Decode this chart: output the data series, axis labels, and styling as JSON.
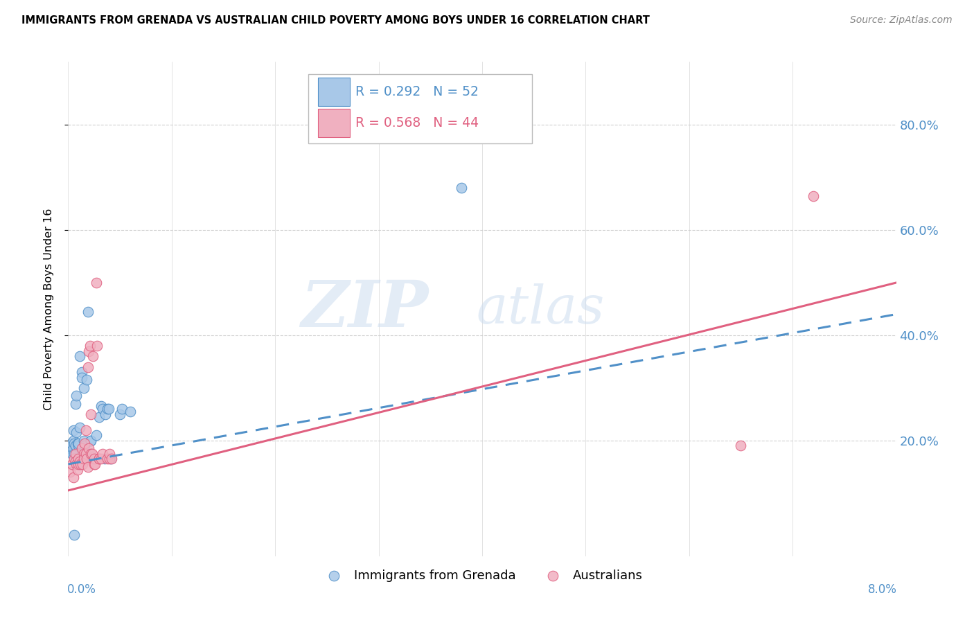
{
  "title": "IMMIGRANTS FROM GRENADA VS AUSTRALIAN CHILD POVERTY AMONG BOYS UNDER 16 CORRELATION CHART",
  "source": "Source: ZipAtlas.com",
  "ylabel": "Child Poverty Among Boys Under 16",
  "legend_label1": "Immigrants from Grenada",
  "legend_label2": "Australians",
  "R1": "R = 0.292",
  "N1": "N = 52",
  "R2": "R = 0.568",
  "N2": "N = 44",
  "color_blue": "#a8c8e8",
  "color_pink": "#f0b0c0",
  "line_color_blue": "#5090c8",
  "line_color_pink": "#e06080",
  "watermark_zip": "ZIP",
  "watermark_atlas": "atlas",
  "xlim": [
    0.0,
    0.08
  ],
  "ylim": [
    -0.02,
    0.92
  ],
  "plot_ylim": [
    0.0,
    0.88
  ],
  "blue_line": [
    0.0,
    0.155,
    0.08,
    0.44
  ],
  "pink_line": [
    0.0,
    0.105,
    0.08,
    0.5
  ],
  "blue_points": [
    [
      0.0002,
      0.185
    ],
    [
      0.0003,
      0.195
    ],
    [
      0.0004,
      0.175
    ],
    [
      0.0005,
      0.2
    ],
    [
      0.0005,
      0.22
    ],
    [
      0.0005,
      0.185
    ],
    [
      0.0006,
      0.175
    ],
    [
      0.0006,
      0.195
    ],
    [
      0.0007,
      0.27
    ],
    [
      0.0007,
      0.19
    ],
    [
      0.0008,
      0.215
    ],
    [
      0.0008,
      0.165
    ],
    [
      0.0008,
      0.285
    ],
    [
      0.0009,
      0.195
    ],
    [
      0.001,
      0.165
    ],
    [
      0.001,
      0.19
    ],
    [
      0.001,
      0.195
    ],
    [
      0.0011,
      0.155
    ],
    [
      0.0011,
      0.225
    ],
    [
      0.0011,
      0.36
    ],
    [
      0.0012,
      0.155
    ],
    [
      0.0012,
      0.165
    ],
    [
      0.0013,
      0.33
    ],
    [
      0.0013,
      0.175
    ],
    [
      0.0013,
      0.32
    ],
    [
      0.0014,
      0.165
    ],
    [
      0.0015,
      0.2
    ],
    [
      0.0015,
      0.3
    ],
    [
      0.0016,
      0.17
    ],
    [
      0.0016,
      0.19
    ],
    [
      0.0018,
      0.165
    ],
    [
      0.0018,
      0.315
    ],
    [
      0.0019,
      0.445
    ],
    [
      0.0021,
      0.17
    ],
    [
      0.0022,
      0.2
    ],
    [
      0.0022,
      0.2
    ],
    [
      0.0024,
      0.165
    ],
    [
      0.0025,
      0.165
    ],
    [
      0.0027,
      0.21
    ],
    [
      0.003,
      0.245
    ],
    [
      0.0032,
      0.265
    ],
    [
      0.0033,
      0.26
    ],
    [
      0.0035,
      0.165
    ],
    [
      0.0036,
      0.25
    ],
    [
      0.0038,
      0.26
    ],
    [
      0.0039,
      0.26
    ],
    [
      0.0041,
      0.165
    ],
    [
      0.005,
      0.25
    ],
    [
      0.0052,
      0.26
    ],
    [
      0.006,
      0.255
    ],
    [
      0.038,
      0.68
    ],
    [
      0.0006,
      0.02
    ]
  ],
  "pink_points": [
    [
      0.0002,
      0.14
    ],
    [
      0.0004,
      0.155
    ],
    [
      0.0005,
      0.13
    ],
    [
      0.0006,
      0.165
    ],
    [
      0.0007,
      0.175
    ],
    [
      0.0007,
      0.16
    ],
    [
      0.0008,
      0.155
    ],
    [
      0.0009,
      0.145
    ],
    [
      0.001,
      0.165
    ],
    [
      0.001,
      0.155
    ],
    [
      0.0011,
      0.16
    ],
    [
      0.0012,
      0.155
    ],
    [
      0.0013,
      0.185
    ],
    [
      0.0014,
      0.155
    ],
    [
      0.0015,
      0.175
    ],
    [
      0.0015,
      0.165
    ],
    [
      0.0016,
      0.195
    ],
    [
      0.0017,
      0.175
    ],
    [
      0.0017,
      0.22
    ],
    [
      0.0018,
      0.165
    ],
    [
      0.0019,
      0.15
    ],
    [
      0.0019,
      0.34
    ],
    [
      0.002,
      0.185
    ],
    [
      0.002,
      0.37
    ],
    [
      0.0021,
      0.38
    ],
    [
      0.0022,
      0.25
    ],
    [
      0.0022,
      0.175
    ],
    [
      0.0023,
      0.175
    ],
    [
      0.0024,
      0.36
    ],
    [
      0.0025,
      0.155
    ],
    [
      0.0025,
      0.165
    ],
    [
      0.0026,
      0.155
    ],
    [
      0.0027,
      0.5
    ],
    [
      0.0028,
      0.38
    ],
    [
      0.003,
      0.165
    ],
    [
      0.003,
      0.165
    ],
    [
      0.0032,
      0.165
    ],
    [
      0.0033,
      0.175
    ],
    [
      0.0038,
      0.165
    ],
    [
      0.004,
      0.165
    ],
    [
      0.004,
      0.175
    ],
    [
      0.0042,
      0.165
    ],
    [
      0.065,
      0.19
    ],
    [
      0.072,
      0.665
    ]
  ]
}
